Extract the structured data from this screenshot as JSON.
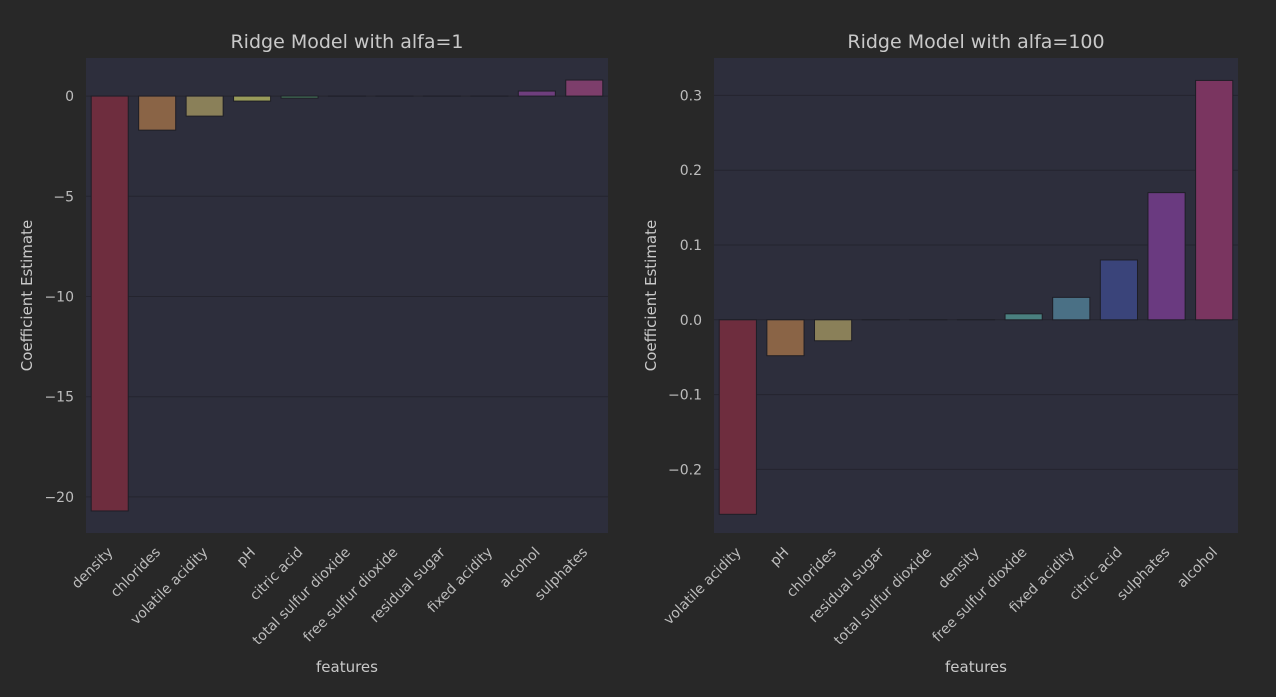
{
  "chart_data": [
    {
      "type": "bar",
      "title": "Ridge Model with alfa=1",
      "xlabel": "features",
      "ylabel": "Coefficient Estimate",
      "ylim": [
        -21.8,
        1.9
      ],
      "yticks": [
        0,
        -5,
        -10,
        -15,
        -20
      ],
      "ytick_labels": [
        "0",
        "−5",
        "−10",
        "−15",
        "−20"
      ],
      "categories": [
        "density",
        "chlorides",
        "volatile acidity",
        "pH",
        "citric acid",
        "total sulfur dioxide",
        "free sulfur dioxide",
        "residual sugar",
        "fixed acidity",
        "alcohol",
        "sulphates"
      ],
      "values": [
        -20.7,
        -1.7,
        -1.0,
        -0.25,
        -0.1,
        0.0,
        0.0,
        0.0,
        0.0,
        0.25,
        0.8
      ],
      "colors": [
        "#6e2d3e",
        "#8a6446",
        "#8a8059",
        "#999b5a",
        "#4a8060",
        "#5c8f6f",
        "#4a7d80",
        "#4a6d80",
        "#3e4d7d",
        "#6e3e7d",
        "#7d3e6b"
      ],
      "grid": true
    },
    {
      "type": "bar",
      "title": "Ridge Model with alfa=100",
      "xlabel": "features",
      "ylabel": "Coefficient Estimate",
      "ylim": [
        -0.285,
        0.35
      ],
      "yticks": [
        0.3,
        0.2,
        0.1,
        0.0,
        -0.1,
        -0.2
      ],
      "ytick_labels": [
        "0.3",
        "0.2",
        "0.1",
        "0.0",
        "−0.1",
        "−0.2"
      ],
      "categories": [
        "volatile acidity",
        "pH",
        "chlorides",
        "residual sugar",
        "total sulfur dioxide",
        "density",
        "free sulfur dioxide",
        "fixed acidity",
        "citric acid",
        "sulphates",
        "alcohol"
      ],
      "values": [
        -0.26,
        -0.048,
        -0.028,
        0.0,
        0.0,
        0.0,
        0.008,
        0.03,
        0.08,
        0.17,
        0.32
      ],
      "colors": [
        "#6e2d3e",
        "#8a6446",
        "#8a8059",
        "#8a9b5a",
        "#5c8a6a",
        "#4a8070",
        "#4a8080",
        "#4a7085",
        "#3a447a",
        "#6a3a80",
        "#7a3560"
      ],
      "grid": true
    }
  ]
}
